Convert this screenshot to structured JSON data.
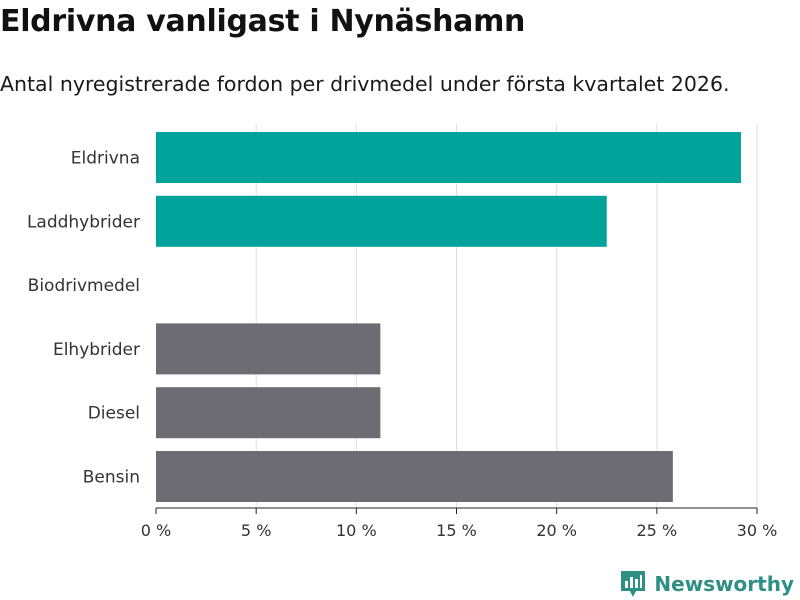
{
  "header": {
    "title": "Eldrivna vanligast i Nynäshamn",
    "subtitle": "Antal nyregistrerade fordon per drivmedel under första kvartalet 2026."
  },
  "chart_data": {
    "type": "bar",
    "orientation": "horizontal",
    "categories": [
      "Eldrivna",
      "Laddhybrider",
      "Biodrivmedel",
      "Elhybrider",
      "Diesel",
      "Bensin"
    ],
    "values": [
      29.2,
      22.5,
      0,
      11.2,
      11.2,
      25.8
    ],
    "colors": [
      "#00a39a",
      "#00a39a",
      "#00a39a",
      "#6d6c73",
      "#6d6c73",
      "#6d6c73"
    ],
    "xlim": [
      0,
      30
    ],
    "xticks": [
      0,
      5,
      10,
      15,
      20,
      25,
      30
    ],
    "xtick_labels": [
      "0 %",
      "5 %",
      "10 %",
      "15 %",
      "20 %",
      "25 %",
      "30 %"
    ],
    "xlabel": "",
    "ylabel": "",
    "grid": true
  },
  "branding": {
    "name": "Newsworthy",
    "accent": "#2e8f84"
  }
}
